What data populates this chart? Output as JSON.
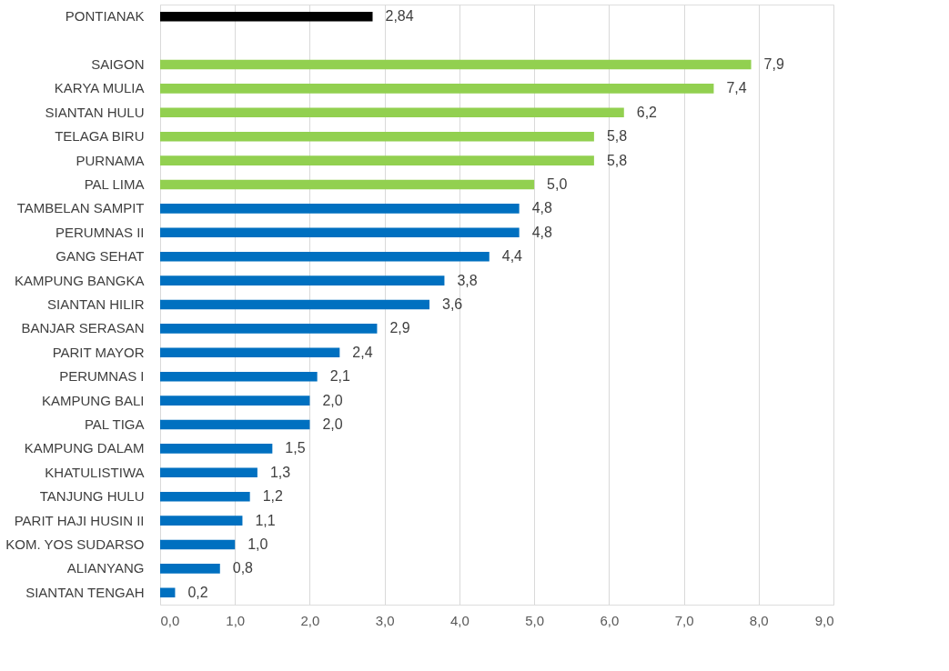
{
  "chart_data": {
    "type": "bar",
    "orientation": "horizontal",
    "categories": [
      "PONTIANAK",
      null,
      "SAIGON",
      "KARYA MULIA",
      "SIANTAN HULU",
      "TELAGA BIRU",
      "PURNAMA",
      "PAL LIMA",
      "TAMBELAN SAMPIT",
      "PERUMNAS II",
      "GANG SEHAT",
      "KAMPUNG BANGKA",
      "SIANTAN HILIR",
      "BANJAR SERASAN",
      "PARIT MAYOR",
      "PERUMNAS I",
      "KAMPUNG BALI",
      "PAL TIGA",
      "KAMPUNG DALAM",
      "KHATULISTIWA",
      "TANJUNG HULU",
      "PARIT HAJI HUSIN II",
      "KOM. YOS SUDARSO",
      "ALIANYANG",
      "SIANTAN TENGAH"
    ],
    "values": [
      2.84,
      null,
      7.9,
      7.4,
      6.2,
      5.8,
      5.8,
      5.0,
      4.8,
      4.8,
      4.4,
      3.8,
      3.6,
      2.9,
      2.4,
      2.1,
      2.0,
      2.0,
      1.5,
      1.3,
      1.2,
      1.1,
      1.0,
      0.8,
      0.2
    ],
    "value_labels": [
      "2,84",
      null,
      "7,9",
      "7,4",
      "6,2",
      "5,8",
      "5,8",
      "5,0",
      "4,8",
      "4,8",
      "4,4",
      "3,8",
      "3,6",
      "2,9",
      "2,4",
      "2,1",
      "2,0",
      "2,0",
      "1,5",
      "1,3",
      "1,2",
      "1,1",
      "1,0",
      "0,8",
      "0,2"
    ],
    "colors": [
      "#000000",
      null,
      "#92d050",
      "#92d050",
      "#92d050",
      "#92d050",
      "#92d050",
      "#92d050",
      "#0070c0",
      "#0070c0",
      "#0070c0",
      "#0070c0",
      "#0070c0",
      "#0070c0",
      "#0070c0",
      "#0070c0",
      "#0070c0",
      "#0070c0",
      "#0070c0",
      "#0070c0",
      "#0070c0",
      "#0070c0",
      "#0070c0",
      "#0070c0",
      "#0070c0"
    ],
    "xlim": [
      0,
      9
    ],
    "xticks": [
      {
        "value": 0,
        "label": "0,0"
      },
      {
        "value": 1,
        "label": "1,0"
      },
      {
        "value": 2,
        "label": "2,0"
      },
      {
        "value": 3,
        "label": "3,0"
      },
      {
        "value": 4,
        "label": "4,0"
      },
      {
        "value": 5,
        "label": "5,0"
      },
      {
        "value": 6,
        "label": "6,0"
      },
      {
        "value": 7,
        "label": "7,0"
      },
      {
        "value": 8,
        "label": "8,0"
      },
      {
        "value": 9,
        "label": "9,0"
      }
    ],
    "grid": "x"
  }
}
